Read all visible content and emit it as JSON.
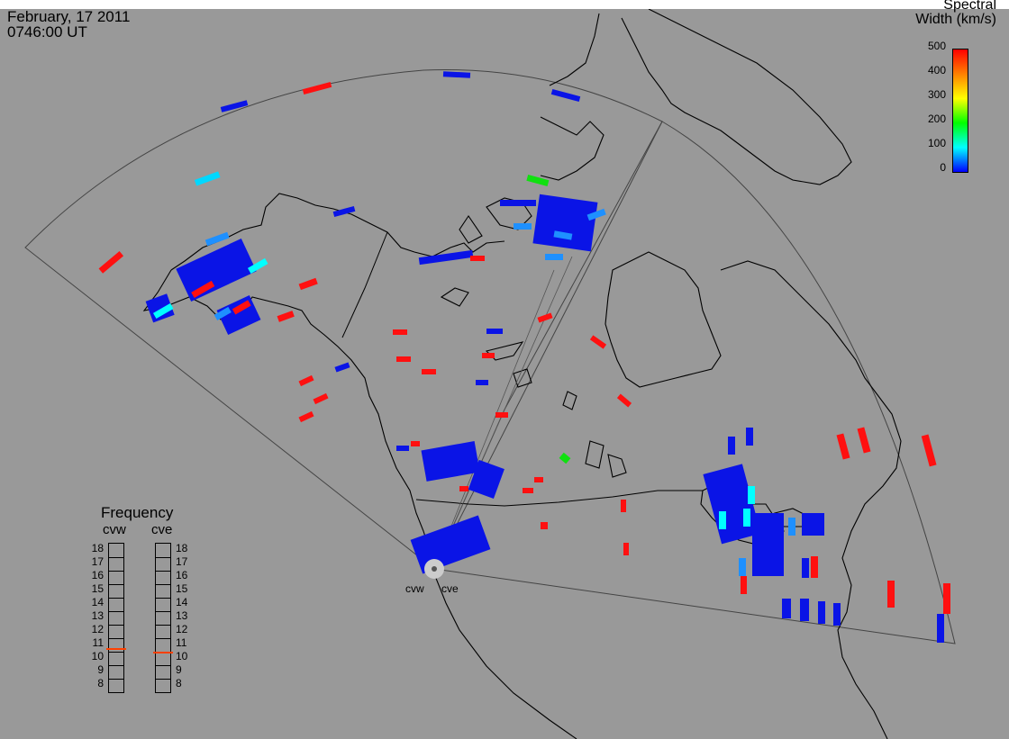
{
  "header": {
    "date": "February, 17 2011",
    "time": "0746:00 UT"
  },
  "colorbar": {
    "title_line1": "Spectral",
    "title_line2": "Width (km/s)",
    "ticks": [
      "500",
      "400",
      "300",
      "200",
      "100",
      "0"
    ],
    "colors": [
      "#ff0000",
      "#ff8000",
      "#ffff00",
      "#00ff00",
      "#00ffff",
      "#0000ff"
    ]
  },
  "frequency_panel": {
    "title": "Frequency",
    "radar_left": "cvw",
    "radar_right": "cve",
    "levels": [
      "18",
      "17",
      "16",
      "15",
      "14",
      "13",
      "12",
      "11",
      "10",
      "9",
      "8"
    ],
    "cvw_value": 10.8,
    "cve_value": 10.5,
    "marker_color": "#ff4000"
  },
  "sites": {
    "left": "cvw",
    "right": "cve"
  }
}
